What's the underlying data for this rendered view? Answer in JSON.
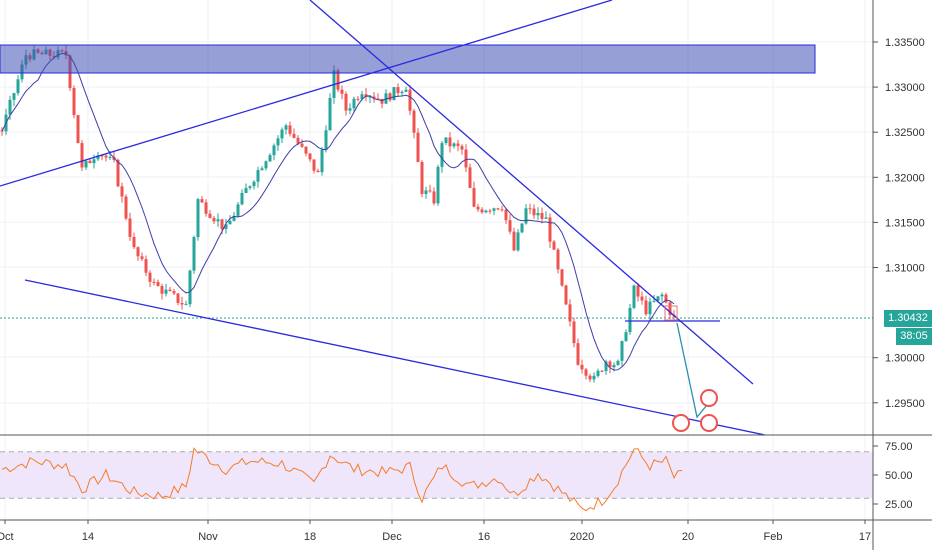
{
  "chart_data": {
    "type": "candlestick",
    "symbol_hint": "",
    "price_axis": {
      "ticks": [
        "1.33500",
        "1.33000",
        "1.32500",
        "1.32000",
        "1.31500",
        "1.31000",
        "1.30000",
        "1.29500"
      ],
      "range": [
        1.2915,
        1.339
      ]
    },
    "time_axis": {
      "ticks": [
        "Oct",
        "14",
        "Nov",
        "18",
        "Dec",
        "16",
        "2020",
        "20",
        "Feb",
        "17"
      ]
    },
    "last_price": "1.30432",
    "countdown": "38:05",
    "price_keyframes": [
      [
        0,
        1.3252
      ],
      [
        6,
        1.3336
      ],
      [
        16,
        1.3336
      ],
      [
        20,
        1.3208
      ],
      [
        24,
        1.323
      ],
      [
        28,
        1.3214
      ],
      [
        33,
        1.3119
      ],
      [
        38,
        1.3081
      ],
      [
        46,
        1.3058
      ],
      [
        49,
        1.3175
      ],
      [
        56,
        1.3142
      ],
      [
        61,
        1.3186
      ],
      [
        71,
        1.3258
      ],
      [
        79,
        1.3203
      ],
      [
        83,
        1.3313
      ],
      [
        86,
        1.3275
      ],
      [
        90,
        1.3297
      ],
      [
        95,
        1.3286
      ],
      [
        101,
        1.3302
      ],
      [
        105,
        1.3186
      ],
      [
        108,
        1.3175
      ],
      [
        110,
        1.3241
      ],
      [
        115,
        1.323
      ],
      [
        118,
        1.3164
      ],
      [
        125,
        1.3169
      ],
      [
        128,
        1.3119
      ],
      [
        131,
        1.3164
      ],
      [
        136,
        1.3153
      ],
      [
        140,
        1.3075
      ],
      [
        144,
        1.2997
      ],
      [
        148,
        1.2975
      ],
      [
        151,
        1.2997
      ],
      [
        154,
        1.2992
      ],
      [
        158,
        1.3075
      ],
      [
        161,
        1.3053
      ],
      [
        165,
        1.3069
      ],
      [
        168,
        1.3043
      ]
    ],
    "rsi": {
      "label_ticks": [
        "75.00",
        "50.00",
        "25.00"
      ],
      "range": [
        0,
        100
      ],
      "bands": [
        30,
        70
      ],
      "keyframes": [
        [
          0,
          55
        ],
        [
          8,
          62
        ],
        [
          16,
          58
        ],
        [
          20,
          38
        ],
        [
          26,
          50
        ],
        [
          33,
          35
        ],
        [
          40,
          32
        ],
        [
          46,
          40
        ],
        [
          48,
          72
        ],
        [
          56,
          55
        ],
        [
          62,
          62
        ],
        [
          70,
          60
        ],
        [
          78,
          42
        ],
        [
          82,
          68
        ],
        [
          88,
          55
        ],
        [
          96,
          52
        ],
        [
          102,
          57
        ],
        [
          105,
          30
        ],
        [
          110,
          58
        ],
        [
          117,
          40
        ],
        [
          124,
          48
        ],
        [
          128,
          33
        ],
        [
          134,
          52
        ],
        [
          140,
          35
        ],
        [
          145,
          20
        ],
        [
          150,
          28
        ],
        [
          153,
          40
        ],
        [
          158,
          72
        ],
        [
          162,
          58
        ],
        [
          166,
          62
        ],
        [
          168,
          48
        ],
        [
          170,
          50
        ]
      ]
    },
    "colors": {
      "up": "#26a69a",
      "down": "#ef5350",
      "ma": "#3f3fa8",
      "drawing": "#2a2ae0",
      "rsi": "#f57c2a",
      "band": "#f0e6fb"
    }
  }
}
